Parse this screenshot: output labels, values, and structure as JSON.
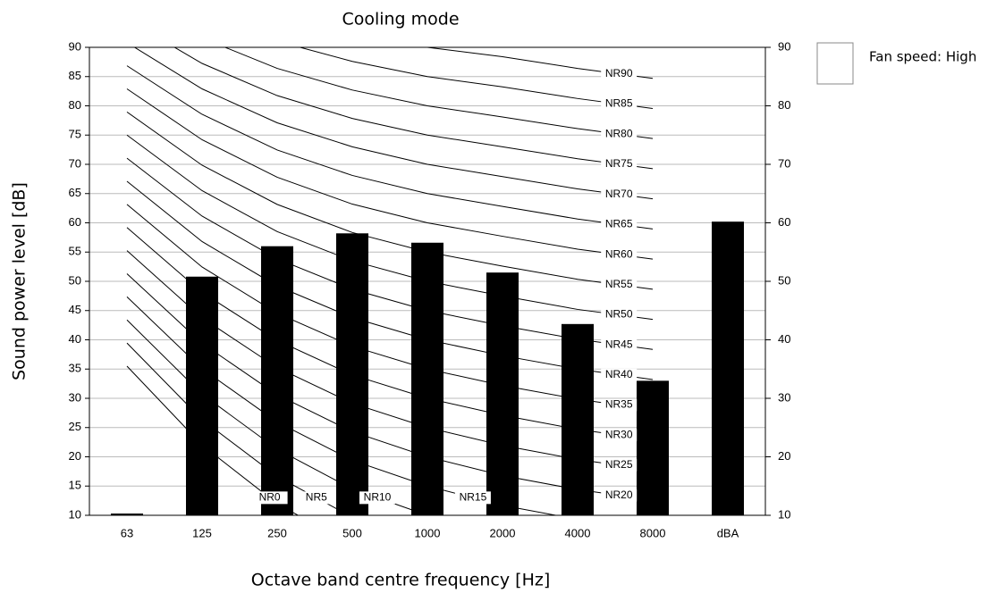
{
  "chart_data": {
    "type": "bar",
    "title": "Cooling  mode",
    "x_label": "Octave band centre frequency [Hz]",
    "y_label": "Sound power level [dB]",
    "categories": [
      "63",
      "125",
      "250",
      "500",
      "1000",
      "2000",
      "4000",
      "8000",
      "dBA"
    ],
    "series": [
      {
        "name": "Fan speed: High",
        "color": "#000000",
        "values": [
          10.3,
          50.8,
          56,
          58.2,
          56.6,
          51.5,
          42.7,
          33,
          60.2
        ]
      }
    ],
    "ylim": [
      10,
      90
    ],
    "yticks": [
      10,
      15,
      20,
      25,
      30,
      35,
      40,
      45,
      50,
      55,
      60,
      65,
      70,
      75,
      80,
      85,
      90
    ],
    "y2lim": [
      10,
      90
    ],
    "y2ticks": [
      10,
      20,
      30,
      40,
      50,
      60,
      70,
      80,
      90
    ],
    "grid": true,
    "legend": "right",
    "nr_curves": [
      {
        "name": "NR0",
        "values": [
          35.5,
          22.0,
          12.0,
          4.8,
          0,
          -3.5,
          -6.1,
          -8.0
        ]
      },
      {
        "name": "NR5",
        "values": [
          39.45,
          26.35,
          16.65,
          9.65,
          5,
          1.55,
          -0.95,
          -2.85
        ]
      },
      {
        "name": "NR10",
        "values": [
          43.4,
          30.7,
          21.3,
          14.5,
          10,
          6.6,
          4.2,
          2.3
        ]
      },
      {
        "name": "NR15",
        "values": [
          47.35,
          35.05,
          25.95,
          19.4,
          15,
          11.7,
          9.3,
          7.45
        ]
      },
      {
        "name": "NR20",
        "values": [
          51.3,
          39.4,
          30.6,
          24.3,
          20,
          16.8,
          14.4,
          12.6
        ]
      },
      {
        "name": "NR25",
        "values": [
          55.25,
          43.75,
          35.25,
          29.15,
          25,
          21.95,
          19.55,
          17.75
        ]
      },
      {
        "name": "NR30",
        "values": [
          59.2,
          48.1,
          39.9,
          34.0,
          30,
          27.1,
          24.7,
          22.9
        ]
      },
      {
        "name": "NR35",
        "values": [
          63.15,
          52.45,
          44.55,
          38.9,
          35,
          32.2,
          29.85,
          28.05
        ]
      },
      {
        "name": "NR40",
        "values": [
          67.1,
          56.8,
          49.2,
          43.8,
          40,
          37.3,
          35.0,
          33.2
        ]
      },
      {
        "name": "NR45",
        "values": [
          71.05,
          61.15,
          53.85,
          48.65,
          45,
          42.4,
          40.1,
          38.35
        ]
      },
      {
        "name": "NR50",
        "values": [
          75.0,
          65.5,
          58.5,
          53.5,
          50,
          47.5,
          45.2,
          43.5
        ]
      },
      {
        "name": "NR55",
        "values": [
          78.95,
          69.85,
          63.15,
          58.35,
          55,
          52.6,
          50.35,
          48.65
        ]
      },
      {
        "name": "NR60",
        "values": [
          82.9,
          74.2,
          67.8,
          63.2,
          60,
          57.7,
          55.5,
          53.8
        ]
      },
      {
        "name": "NR65",
        "values": [
          86.85,
          78.55,
          72.45,
          68.1,
          65,
          62.8,
          60.65,
          58.95
        ]
      },
      {
        "name": "NR70",
        "values": [
          90.8,
          82.9,
          77.1,
          73.0,
          70,
          67.9,
          65.8,
          64.1
        ]
      },
      {
        "name": "NR75",
        "values": [
          94.75,
          87.25,
          81.75,
          77.85,
          75,
          73,
          70.95,
          69.25
        ]
      },
      {
        "name": "NR80",
        "values": [
          98.7,
          91.6,
          86.4,
          82.7,
          80,
          78.1,
          76.1,
          74.4
        ]
      },
      {
        "name": "NR85",
        "values": [
          102.65,
          95.95,
          91.05,
          87.6,
          85,
          83.25,
          81.25,
          79.55
        ]
      },
      {
        "name": "NR90",
        "values": [
          106.6,
          100.3,
          95.7,
          92.5,
          90,
          88.4,
          86.4,
          84.7
        ]
      }
    ]
  }
}
